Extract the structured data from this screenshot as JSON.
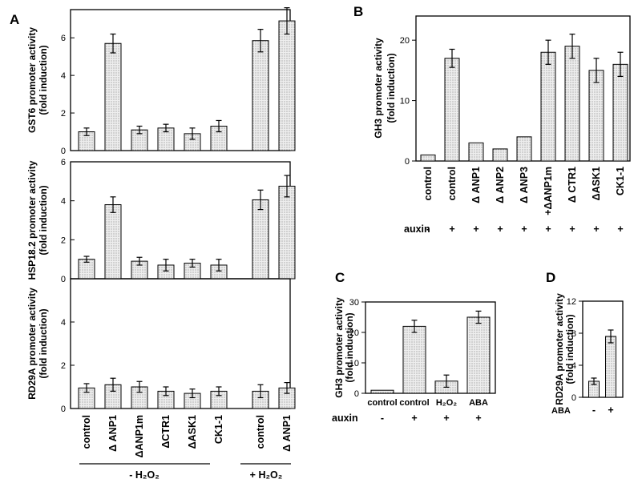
{
  "figure": {
    "panel_labels": [
      "A",
      "B",
      "C",
      "D"
    ],
    "colors": {
      "ink": "#000000",
      "bar_fill": "#eeeeee",
      "bar_dots": "#7a7a7a"
    }
  },
  "chart_data": [
    {
      "id": "A1",
      "type": "bar",
      "panel": "A",
      "ylabel": [
        "GST6 promoter activity",
        "(fold induction)"
      ],
      "ylim": [
        0,
        7.5
      ],
      "yticks": [
        0,
        2,
        4,
        6
      ],
      "yticklabels": [
        "0",
        "2",
        "4",
        "6"
      ],
      "categories": [
        "control",
        "ANP1",
        "ANP1m",
        "CTR1",
        "ASK1",
        "CK1-1",
        "control",
        "ANP1"
      ],
      "values": [
        1.0,
        5.7,
        1.1,
        1.2,
        0.9,
        1.3,
        5.85,
        6.9
      ],
      "errors": [
        0.2,
        0.5,
        0.2,
        0.2,
        0.3,
        0.3,
        0.6,
        0.7
      ]
    },
    {
      "id": "A2",
      "type": "bar",
      "panel": "A",
      "ylabel": [
        "HSP18.2 promoter activity",
        "(fold induction)"
      ],
      "ylim": [
        0,
        6
      ],
      "yticks": [
        0,
        2,
        4,
        6
      ],
      "yticklabels": [
        "0",
        "2",
        "4",
        "6"
      ],
      "categories": [
        "control",
        "ANP1",
        "ANP1m",
        "CTR1",
        "ASK1",
        "CK1-1",
        "control",
        "ANP1"
      ],
      "values": [
        1.0,
        3.8,
        0.9,
        0.7,
        0.8,
        0.7,
        4.05,
        4.75
      ],
      "errors": [
        0.15,
        0.4,
        0.2,
        0.3,
        0.2,
        0.3,
        0.5,
        0.55
      ]
    },
    {
      "id": "A3",
      "type": "bar",
      "panel": "A",
      "ylabel": [
        "RD29A promoter activity",
        "(fold induction)"
      ],
      "ylim": [
        0,
        6
      ],
      "yticks": [
        0,
        2,
        4
      ],
      "yticklabels": [
        "0",
        "2",
        "4"
      ],
      "categories": [
        "control",
        "ANP1",
        "ANP1m",
        "CTR1",
        "ASK1",
        "CK1-1",
        "control",
        "ANP1"
      ],
      "values": [
        0.95,
        1.1,
        1.0,
        0.8,
        0.7,
        0.8,
        0.8,
        0.95
      ],
      "errors": [
        0.2,
        0.3,
        0.25,
        0.2,
        0.2,
        0.2,
        0.3,
        0.25
      ],
      "xticklabels": [
        "control",
        "Δ ANP1",
        "ΔANP1m",
        "ΔCTR1",
        "ΔASK1",
        "CK1-1",
        "control",
        "Δ ANP1"
      ],
      "condition_labels": [
        "- H₂O₂",
        "+ H₂O₂"
      ]
    },
    {
      "id": "B",
      "type": "bar",
      "panel": "B",
      "ylabel": [
        "GH3 promoter activity",
        "(fold induction)"
      ],
      "ylim": [
        0,
        24
      ],
      "yticks": [
        0,
        10,
        20
      ],
      "yticklabels": [
        "0",
        "10",
        "20"
      ],
      "categories": [
        "control",
        "control",
        "ANP1",
        "ANP2",
        "ANP3",
        "ANP1m",
        "CTR1",
        "ASK1",
        "CK1-1"
      ],
      "values": [
        1.0,
        17.0,
        3.0,
        2.0,
        4.0,
        18.0,
        19.0,
        15.0,
        16.0
      ],
      "errors": [
        0,
        1.5,
        0,
        0,
        0,
        2.0,
        2.0,
        2.0,
        2.0
      ],
      "xticklabels": [
        "control",
        "control",
        "Δ ANP1",
        "Δ ANP2",
        "Δ ANP3",
        "+ΔANP1m",
        "Δ CTR1",
        "ΔASK1",
        "CK1-1"
      ],
      "treatment_label": "auxin",
      "treatment_values": [
        "-",
        "+",
        "+",
        "+",
        "+",
        "+",
        "+",
        "+",
        "+"
      ]
    },
    {
      "id": "C",
      "type": "bar",
      "panel": "C",
      "ylabel": [
        "GH3 promoter activity",
        "(fold induction)"
      ],
      "ylim": [
        0,
        30
      ],
      "yticks": [
        0,
        10,
        20,
        30
      ],
      "yticklabels": [
        "0",
        "10",
        "20",
        "30"
      ],
      "categories": [
        "control",
        "control",
        "H₂O₂",
        "ABA"
      ],
      "values": [
        1.0,
        22.0,
        4.0,
        25.0
      ],
      "errors": [
        0,
        2.0,
        2.0,
        2.0
      ],
      "xticklabels": [
        "control",
        "control",
        "H₂O₂",
        "ABA"
      ],
      "treatment_label": "auxin",
      "treatment_values": [
        "-",
        "+",
        "+",
        "+"
      ]
    },
    {
      "id": "D",
      "type": "bar",
      "panel": "D",
      "ylabel": [
        "RD29A promoter activity",
        "(fold induction)"
      ],
      "ylim": [
        0,
        12
      ],
      "yticks": [
        0,
        4,
        8,
        12
      ],
      "yticklabels": [
        "0",
        "4",
        "8",
        "12"
      ],
      "categories": [
        "-",
        "+"
      ],
      "values": [
        2.0,
        7.6
      ],
      "errors": [
        0.4,
        0.8
      ],
      "treatment_label": "ABA",
      "treatment_values": [
        "-",
        "+"
      ]
    }
  ]
}
